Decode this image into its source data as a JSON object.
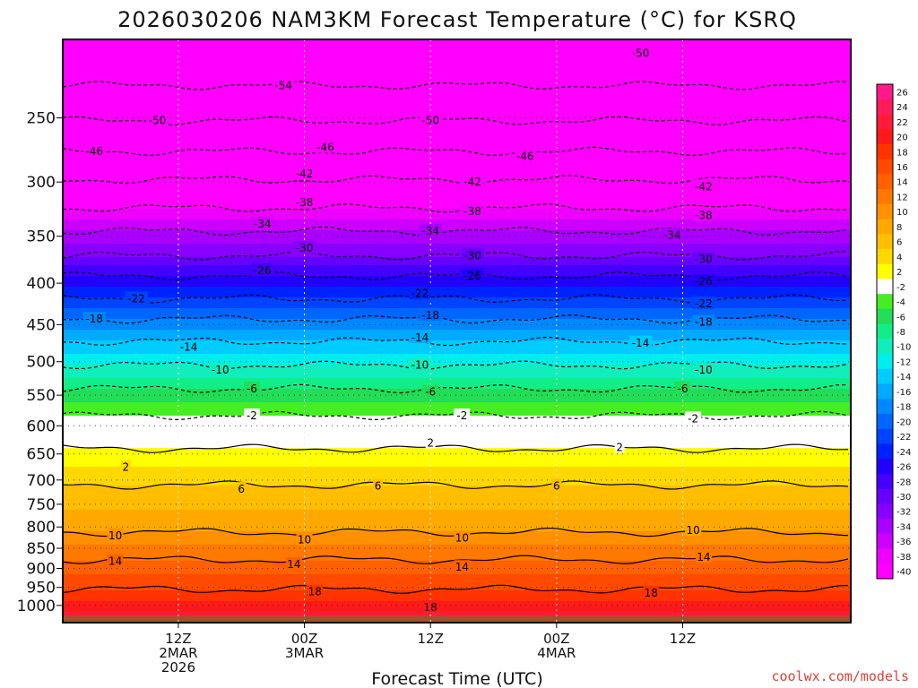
{
  "chart_data": {
    "type": "heatmap",
    "title": "2026030206 NAM3KM Forecast Temperature (°C) for KSRQ",
    "xlabel": "Forecast Time (UTC)",
    "ylabel": "",
    "y_scale": "log",
    "ylim": [
      1050,
      200
    ],
    "y_ticks": [
      1000,
      950,
      900,
      850,
      800,
      750,
      700,
      650,
      600,
      550,
      500,
      450,
      400,
      350,
      300,
      250
    ],
    "x_range_hours": [
      -5,
      70
    ],
    "x_ticks": [
      {
        "hour": 6,
        "lines": [
          "12Z",
          "2MAR",
          "2026"
        ]
      },
      {
        "hour": 18,
        "lines": [
          "00Z",
          "3MAR"
        ]
      },
      {
        "hour": 30,
        "lines": [
          "12Z"
        ]
      },
      {
        "hour": 42,
        "lines": [
          "00Z",
          "4MAR"
        ]
      },
      {
        "hour": 54,
        "lines": [
          "12Z"
        ]
      }
    ],
    "grid": true,
    "colorbar": {
      "labels": [
        26,
        24,
        22,
        20,
        18,
        16,
        14,
        12,
        10,
        8,
        6,
        4,
        2,
        -2,
        -4,
        -6,
        -8,
        -10,
        -12,
        -14,
        -16,
        -18,
        -20,
        -22,
        -24,
        -26,
        -28,
        -30,
        -32,
        -34,
        -36,
        -38,
        -40
      ],
      "band_colors": [
        "#ff1a8c",
        "#ff1a5a",
        "#ff1a3a",
        "#ff1a1a",
        "#ff3300",
        "#ff4a00",
        "#ff6000",
        "#ff7800",
        "#ff9000",
        "#ffa800",
        "#ffbf00",
        "#ffd800",
        "#ffff00",
        "#ffffff",
        "#44ee22",
        "#22dd55",
        "#11ee88",
        "#11eebb",
        "#00eeee",
        "#00ccff",
        "#00aaff",
        "#0088ff",
        "#0066ff",
        "#0044ff",
        "#0022ff",
        "#2200ff",
        "#4400ff",
        "#6600ff",
        "#8800ff",
        "#aa00ff",
        "#cc00ff",
        "#ee00ff",
        "#ff00ff"
      ]
    },
    "contour_lines": [
      {
        "value": -54,
        "pressure": 228,
        "dashed": true
      },
      {
        "value": -50,
        "pressure": 252,
        "dashed": true
      },
      {
        "value": -46,
        "pressure": 275,
        "dashed": true
      },
      {
        "value": -42,
        "pressure": 298,
        "dashed": true
      },
      {
        "value": -38,
        "pressure": 323,
        "dashed": true
      },
      {
        "value": -34,
        "pressure": 345,
        "dashed": true
      },
      {
        "value": -30,
        "pressure": 370,
        "dashed": true
      },
      {
        "value": -26,
        "pressure": 392,
        "dashed": true
      },
      {
        "value": -22,
        "pressure": 418,
        "dashed": true
      },
      {
        "value": -18,
        "pressure": 443,
        "dashed": true
      },
      {
        "value": -14,
        "pressure": 472,
        "dashed": true
      },
      {
        "value": -10,
        "pressure": 505,
        "dashed": true
      },
      {
        "value": -6,
        "pressure": 540,
        "dashed": true
      },
      {
        "value": -2,
        "pressure": 583,
        "dashed": true
      },
      {
        "value": 2,
        "pressure": 640,
        "dashed": false
      },
      {
        "value": 6,
        "pressure": 710,
        "dashed": false
      },
      {
        "value": 10,
        "pressure": 812,
        "dashed": false
      },
      {
        "value": 14,
        "pressure": 878,
        "dashed": false
      },
      {
        "value": 18,
        "pressure": 955,
        "dashed": false
      }
    ],
    "contour_labels": [
      {
        "value": -54,
        "hour": 16,
        "pressure": 228
      },
      {
        "value": -50,
        "hour": 50,
        "pressure": 208
      },
      {
        "value": -50,
        "hour": 4,
        "pressure": 252
      },
      {
        "value": -50,
        "hour": 30,
        "pressure": 252
      },
      {
        "value": -46,
        "hour": -2,
        "pressure": 275
      },
      {
        "value": -46,
        "hour": 20,
        "pressure": 272
      },
      {
        "value": -46,
        "hour": 39,
        "pressure": 279
      },
      {
        "value": -42,
        "hour": 18,
        "pressure": 293
      },
      {
        "value": -42,
        "hour": 34,
        "pressure": 300
      },
      {
        "value": -42,
        "hour": 56,
        "pressure": 304
      },
      {
        "value": -38,
        "hour": 18,
        "pressure": 318
      },
      {
        "value": -38,
        "hour": 34,
        "pressure": 326
      },
      {
        "value": -38,
        "hour": 56,
        "pressure": 330
      },
      {
        "value": -34,
        "hour": 14,
        "pressure": 338
      },
      {
        "value": -34,
        "hour": 30,
        "pressure": 345
      },
      {
        "value": -34,
        "hour": 53,
        "pressure": 349
      },
      {
        "value": -30,
        "hour": 18,
        "pressure": 362
      },
      {
        "value": -30,
        "hour": 34,
        "pressure": 370
      },
      {
        "value": -30,
        "hour": 56,
        "pressure": 374
      },
      {
        "value": -26,
        "hour": 14,
        "pressure": 386
      },
      {
        "value": -26,
        "hour": 34,
        "pressure": 392
      },
      {
        "value": -26,
        "hour": 56,
        "pressure": 398
      },
      {
        "value": -22,
        "hour": 2,
        "pressure": 418
      },
      {
        "value": -22,
        "hour": 29,
        "pressure": 412
      },
      {
        "value": -22,
        "hour": 56,
        "pressure": 424
      },
      {
        "value": -18,
        "hour": -2,
        "pressure": 443
      },
      {
        "value": -18,
        "hour": 30,
        "pressure": 438
      },
      {
        "value": -18,
        "hour": 56,
        "pressure": 447
      },
      {
        "value": -14,
        "hour": 7,
        "pressure": 480
      },
      {
        "value": -14,
        "hour": 29,
        "pressure": 467
      },
      {
        "value": -14,
        "hour": 50,
        "pressure": 474
      },
      {
        "value": -10,
        "hour": 10,
        "pressure": 512
      },
      {
        "value": -10,
        "hour": 29,
        "pressure": 505
      },
      {
        "value": -10,
        "hour": 56,
        "pressure": 512
      },
      {
        "value": -6,
        "hour": 13,
        "pressure": 540
      },
      {
        "value": -6,
        "hour": 30,
        "pressure": 545
      },
      {
        "value": -6,
        "hour": 54,
        "pressure": 540
      },
      {
        "value": -2,
        "hour": 13,
        "pressure": 583
      },
      {
        "value": -2,
        "hour": 33,
        "pressure": 583
      },
      {
        "value": -2,
        "hour": 55,
        "pressure": 588
      },
      {
        "value": 2,
        "hour": 1,
        "pressure": 675
      },
      {
        "value": 2,
        "hour": 30,
        "pressure": 630
      },
      {
        "value": 2,
        "hour": 48,
        "pressure": 638
      },
      {
        "value": 6,
        "hour": 12,
        "pressure": 718
      },
      {
        "value": 6,
        "hour": 25,
        "pressure": 712
      },
      {
        "value": 6,
        "hour": 42,
        "pressure": 712
      },
      {
        "value": 10,
        "hour": 0,
        "pressure": 820
      },
      {
        "value": 10,
        "hour": 18,
        "pressure": 830
      },
      {
        "value": 10,
        "hour": 33,
        "pressure": 825
      },
      {
        "value": 10,
        "hour": 55,
        "pressure": 808
      },
      {
        "value": 14,
        "hour": 0,
        "pressure": 882
      },
      {
        "value": 14,
        "hour": 17,
        "pressure": 890
      },
      {
        "value": 14,
        "hour": 33,
        "pressure": 897
      },
      {
        "value": 14,
        "hour": 56,
        "pressure": 872
      },
      {
        "value": 18,
        "hour": 19,
        "pressure": 962
      },
      {
        "value": 18,
        "hour": 51,
        "pressure": 965
      },
      {
        "value": 18,
        "hour": 30,
        "pressure": 1005
      }
    ]
  },
  "credit": "coolwx.com/models"
}
